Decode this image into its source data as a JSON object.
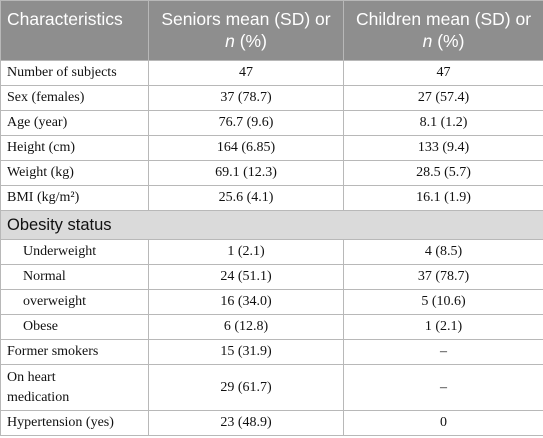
{
  "table": {
    "header": [
      "Characteristics",
      [
        "Seniors mean (SD) or",
        "n",
        "(%)"
      ],
      [
        "Children mean (SD) or",
        "n",
        "(%)"
      ]
    ],
    "rows": [
      [
        "Number of subjects",
        "47",
        "47"
      ],
      [
        "Sex (females)",
        "37 (78.7)",
        "27 (57.4)"
      ],
      [
        "Age (year)",
        "76.7 (9.6)",
        "8.1 (1.2)"
      ],
      [
        "Height (cm)",
        "164 (6.85)",
        "133 (9.4)"
      ],
      [
        "Weight (kg)",
        "69.1 (12.3)",
        "28.5 (5.7)"
      ],
      [
        "BMI (kg/m²)",
        "25.6 (4.1)",
        "16.1 (1.9)"
      ]
    ],
    "section": {
      "title": "Obesity status",
      "rows": [
        [
          "Underweight",
          "1 (2.1)",
          "4 (8.5)"
        ],
        [
          "Normal",
          "24 (51.1)",
          "37 (78.7)"
        ],
        [
          "overweight",
          "16 (34.0)",
          "5 (10.6)"
        ],
        [
          "Obese",
          "6 (12.8)",
          "1 (2.1)"
        ]
      ]
    },
    "rows_after": [
      [
        "Former smokers",
        "15 (31.9)",
        "–"
      ],
      [
        "On heart medication",
        "29 (61.7)",
        "–"
      ],
      [
        "Hypertension (yes)",
        "23 (48.9)",
        "0"
      ]
    ]
  }
}
